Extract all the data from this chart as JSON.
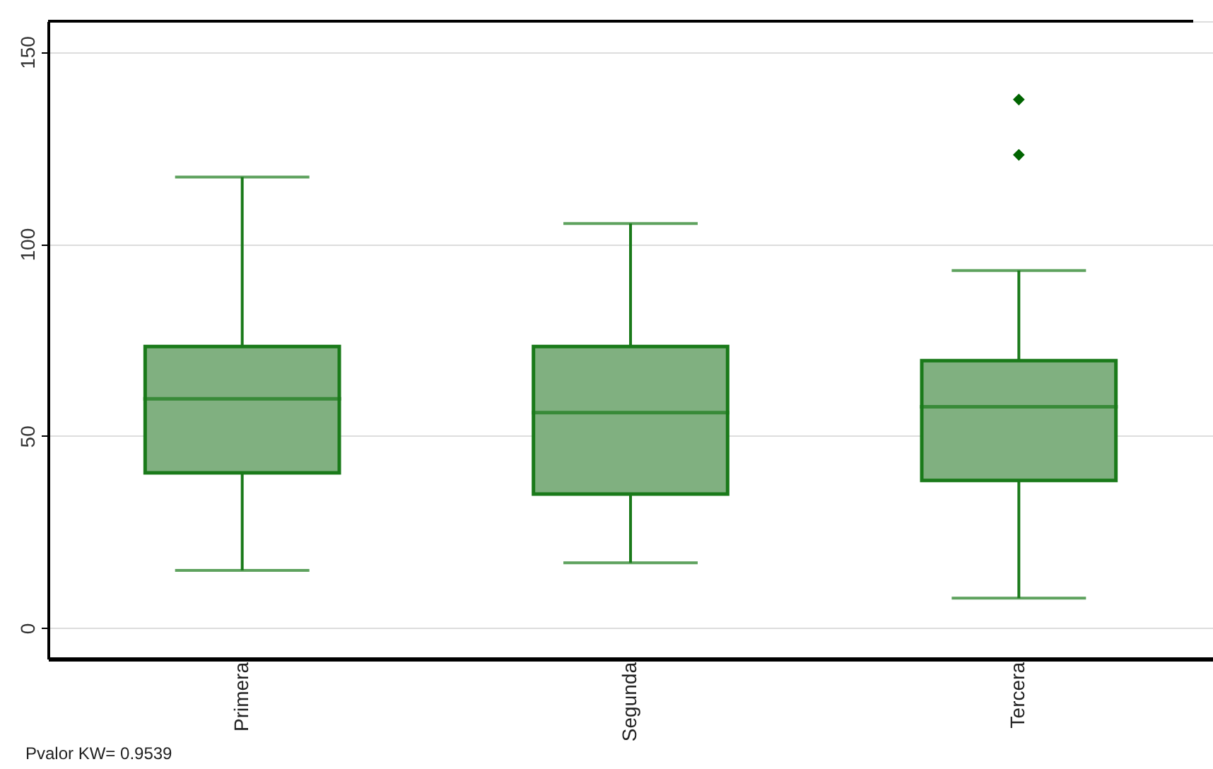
{
  "chart_data": {
    "type": "box",
    "categories": [
      "Primera",
      "Segunda",
      "Tercera"
    ],
    "boxes": [
      {
        "low": 15.0,
        "q1": 40.4,
        "median": 59.7,
        "q3": 73.3,
        "high": 117.4
      },
      {
        "low": 17.0,
        "q1": 34.9,
        "median": 56.1,
        "q3": 73.3,
        "high": 105.3
      },
      {
        "low": 7.8,
        "q1": 38.4,
        "median": 57.6,
        "q3": 69.6,
        "high": 93.1,
        "outliers": [
          137.6,
          123.2
        ]
      }
    ],
    "color": "#80b080",
    "ylim": [
      -8,
      158
    ],
    "yticks": [
      0,
      50,
      100,
      150
    ],
    "grid": "y",
    "annotations": [
      "Pvalor KW=  0.9539"
    ]
  }
}
